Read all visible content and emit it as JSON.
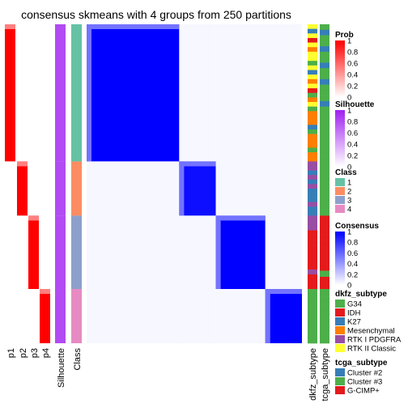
{
  "chart_data": {
    "type": "heatmap",
    "title": "consensus skmeans with 4 groups from 250 partitions",
    "left_tracks": [
      "p1",
      "p2",
      "p3",
      "p4",
      "Silhouette",
      "Class"
    ],
    "right_tracks": [
      "dkfz_subtype",
      "tcga_subtype"
    ],
    "groups": [
      {
        "class": "1",
        "fraction": 0.43,
        "silhouette": 0.95
      },
      {
        "class": "2",
        "fraction": 0.17,
        "silhouette": 0.95
      },
      {
        "class": "3",
        "fraction": 0.23,
        "silhouette": 0.95
      },
      {
        "class": "4",
        "fraction": 0.17,
        "silhouette": 0.95
      }
    ],
    "consensus_within_group": [
      1.0,
      0.95,
      1.0,
      1.0
    ],
    "legends": {
      "prob": {
        "title": "Prob",
        "ticks": [
          "1",
          "0.8",
          "0.6",
          "0.4",
          "0.2",
          "0"
        ],
        "low": "#ffffff",
        "high": "#ff0000"
      },
      "silhouette": {
        "title": "Silhouette",
        "ticks": [
          "1",
          "0.8",
          "0.6",
          "0.4",
          "0.2",
          "0"
        ],
        "low": "#ffffff",
        "high": "#a020f0"
      },
      "class": {
        "title": "Class",
        "items": [
          {
            "label": "1",
            "color": "#66C2A5"
          },
          {
            "label": "2",
            "color": "#FC8D62"
          },
          {
            "label": "3",
            "color": "#8DA0CB"
          },
          {
            "label": "4",
            "color": "#E78AC3"
          }
        ]
      },
      "consensus": {
        "title": "Consensus",
        "ticks": [
          "1",
          "0.8",
          "0.6",
          "0.4",
          "0.2",
          "0"
        ],
        "low": "#ffffff",
        "high": "#0000ff"
      },
      "dkfz_subtype": {
        "title": "dkfz_subtype",
        "items": [
          {
            "label": "G34",
            "color": "#4DAF4A"
          },
          {
            "label": "IDH",
            "color": "#E41A1C"
          },
          {
            "label": "K27",
            "color": "#377EB8"
          },
          {
            "label": "Mesenchymal",
            "color": "#FF7F00"
          },
          {
            "label": "RTK I PDGFRA",
            "color": "#984EA3"
          },
          {
            "label": "RTK II Classic",
            "color": "#FFFF33"
          }
        ]
      },
      "tcga_subtype": {
        "title": "tcga_subtype",
        "items": [
          {
            "label": "Cluster #2",
            "color": "#377EB8"
          },
          {
            "label": "Cluster #3",
            "color": "#4DAF4A"
          },
          {
            "label": "G-CIMP+",
            "color": "#E41A1C"
          }
        ]
      }
    }
  }
}
